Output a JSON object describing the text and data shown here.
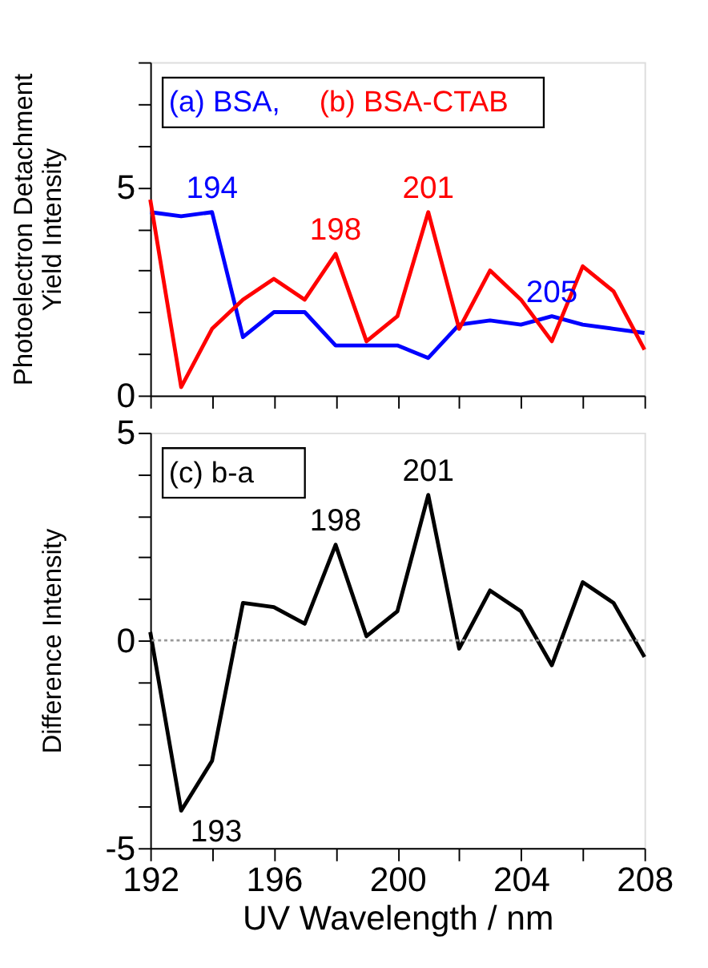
{
  "chart_data": [
    {
      "type": "line",
      "ylabel": "Photoelectron Detachment\nYield Intensity",
      "x": [
        192,
        193,
        194,
        195,
        196,
        197,
        198,
        199,
        200,
        201,
        202,
        203,
        204,
        205,
        206,
        207,
        208
      ],
      "series": [
        {
          "name": "(a) BSA,",
          "color": "#0000ff",
          "values": [
            4.4,
            4.3,
            4.4,
            1.4,
            2.0,
            2.0,
            1.2,
            1.2,
            1.2,
            0.9,
            1.7,
            1.8,
            1.7,
            1.9,
            1.7,
            1.6,
            1.5
          ]
        },
        {
          "name": "(b) BSA-CTAB",
          "color": "#ff0000",
          "values": [
            4.7,
            0.2,
            1.6,
            2.3,
            2.8,
            2.3,
            3.4,
            1.3,
            1.9,
            4.4,
            1.6,
            3.0,
            2.3,
            1.3,
            3.1,
            2.5,
            1.1
          ]
        }
      ],
      "xlim": [
        192,
        208
      ],
      "xticks": [
        192,
        {
          "value": 194,
          "label": null
        },
        196,
        {
          "value": 198,
          "label": null
        },
        200,
        {
          "value": 202,
          "label": null
        },
        204,
        {
          "value": 206,
          "label": null
        },
        208
      ],
      "ylim": [
        0,
        8
      ],
      "yticks": [
        0,
        {
          "value": 1,
          "label": null
        },
        {
          "value": 2,
          "label": null
        },
        {
          "value": 3,
          "label": null
        },
        {
          "value": 4,
          "label": null
        },
        5,
        {
          "value": 6,
          "label": null
        },
        {
          "value": 7,
          "label": null
        },
        {
          "value": 8,
          "label": null
        }
      ],
      "tick_labels": "y",
      "legend": "top",
      "grid": false,
      "annotations": [
        {
          "text": "194",
          "x": 194,
          "y": 4.4
        },
        {
          "text": "198",
          "x": 198,
          "y": 3.4
        },
        {
          "text": "201",
          "x": 201,
          "y": 4.4
        },
        {
          "text": "205",
          "x": 205,
          "y": 1.9
        }
      ]
    },
    {
      "type": "line",
      "xlabel": "UV Wavelength / nm",
      "ylabel": "Difference Intensity",
      "x": [
        192,
        193,
        194,
        195,
        196,
        197,
        198,
        199,
        200,
        201,
        202,
        203,
        204,
        205,
        206,
        207,
        208
      ],
      "series": [
        {
          "name": "(c) b-a",
          "color": "#000000",
          "values": [
            0.2,
            -4.1,
            -2.9,
            0.9,
            0.8,
            0.4,
            2.3,
            0.1,
            0.7,
            3.5,
            -0.2,
            1.2,
            0.7,
            -0.6,
            1.4,
            0.9,
            -0.4
          ]
        }
      ],
      "xlim": [
        192,
        208
      ],
      "xticks": [
        192,
        {
          "value": 194,
          "label": null
        },
        196,
        {
          "value": 198,
          "label": null
        },
        200,
        {
          "value": 202,
          "label": null
        },
        204,
        {
          "value": 206,
          "label": null
        },
        208
      ],
      "ylim": [
        -5,
        5
      ],
      "yticks": [
        -5,
        {
          "value": -4,
          "label": null
        },
        {
          "value": -3,
          "label": null
        },
        {
          "value": -2,
          "label": null
        },
        {
          "value": -1,
          "label": null
        },
        0,
        {
          "value": 1,
          "label": null
        },
        {
          "value": 2,
          "label": null
        },
        {
          "value": 3,
          "label": null
        },
        {
          "value": 4,
          "label": null
        },
        5
      ],
      "legend": "top left",
      "grid": false,
      "ref_lines": [
        {
          "axis": "y",
          "value": 0,
          "color": "#999999",
          "line_style": "dotted"
        }
      ],
      "annotations": [
        {
          "text": "198",
          "x": 198,
          "y": 2.3
        },
        {
          "text": "201",
          "x": 201,
          "y": 3.5
        },
        {
          "text": "193",
          "x": 193,
          "y": -4.1
        }
      ]
    }
  ]
}
